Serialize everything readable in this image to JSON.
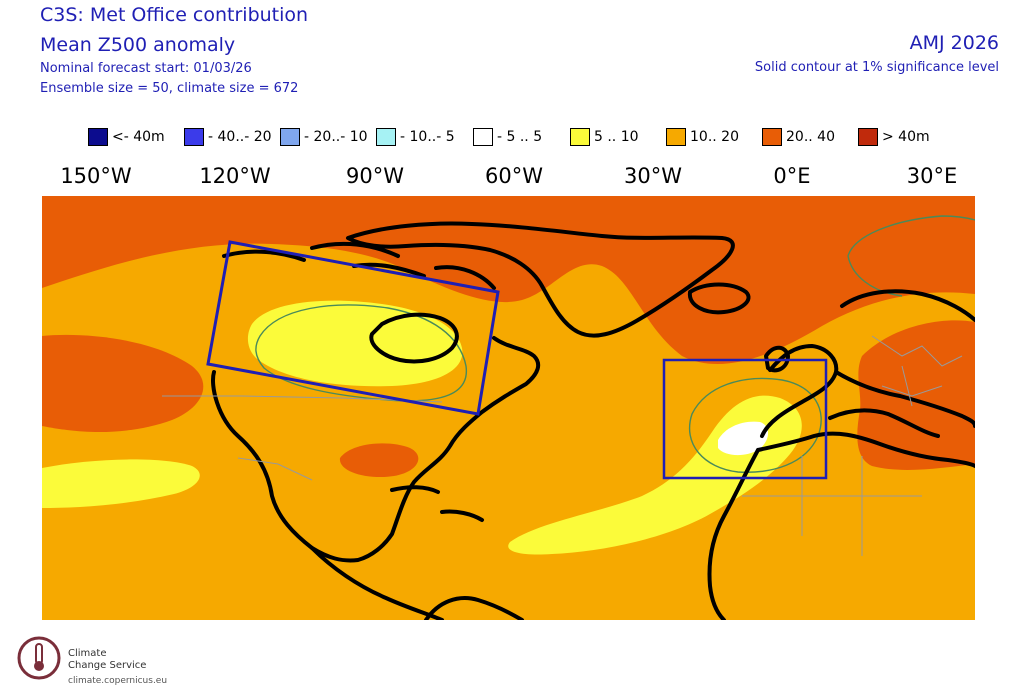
{
  "header": {
    "title": "C3S: Met Office contribution",
    "subtitle": "Mean Z500 anomaly",
    "forecast_start": "Nominal forecast start: 01/03/26",
    "ensemble": "Ensemble size = 50, climate size = 672",
    "season": "AMJ 2026",
    "significance": "Solid contour at 1% significance level"
  },
  "legend": [
    {
      "label": "<- 40m",
      "color": "#0c0c8e"
    },
    {
      "label": "- 40..- 20",
      "color": "#3b3bea"
    },
    {
      "label": "- 20..- 10",
      "color": "#7fa6ee"
    },
    {
      "label": "- 10..- 5",
      "color": "#a6f2f4"
    },
    {
      "label": "- 5 .. 5",
      "color": "#ffffff"
    },
    {
      "label": "5 .. 10",
      "color": "#fbfb3a"
    },
    {
      "label": "10.. 20",
      "color": "#f6a900"
    },
    {
      "label": "20.. 40",
      "color": "#e85d06"
    },
    {
      "label": ">  40m",
      "color": "#c02a0c"
    }
  ],
  "longitude_labels": [
    "150°W",
    "120°W",
    "90°W",
    "60°W",
    "30°W",
    "0°E",
    "30°E"
  ],
  "map": {
    "background_color": "#f6a900",
    "region_boxes": [
      "north-america-box",
      "iberia-box"
    ],
    "box_color": "#1f1fb4",
    "significance_contour_color": "#4a8a5a"
  },
  "logo": {
    "line1": "Climate",
    "line2": "Change Service",
    "url": "climate.copernicus.eu"
  }
}
